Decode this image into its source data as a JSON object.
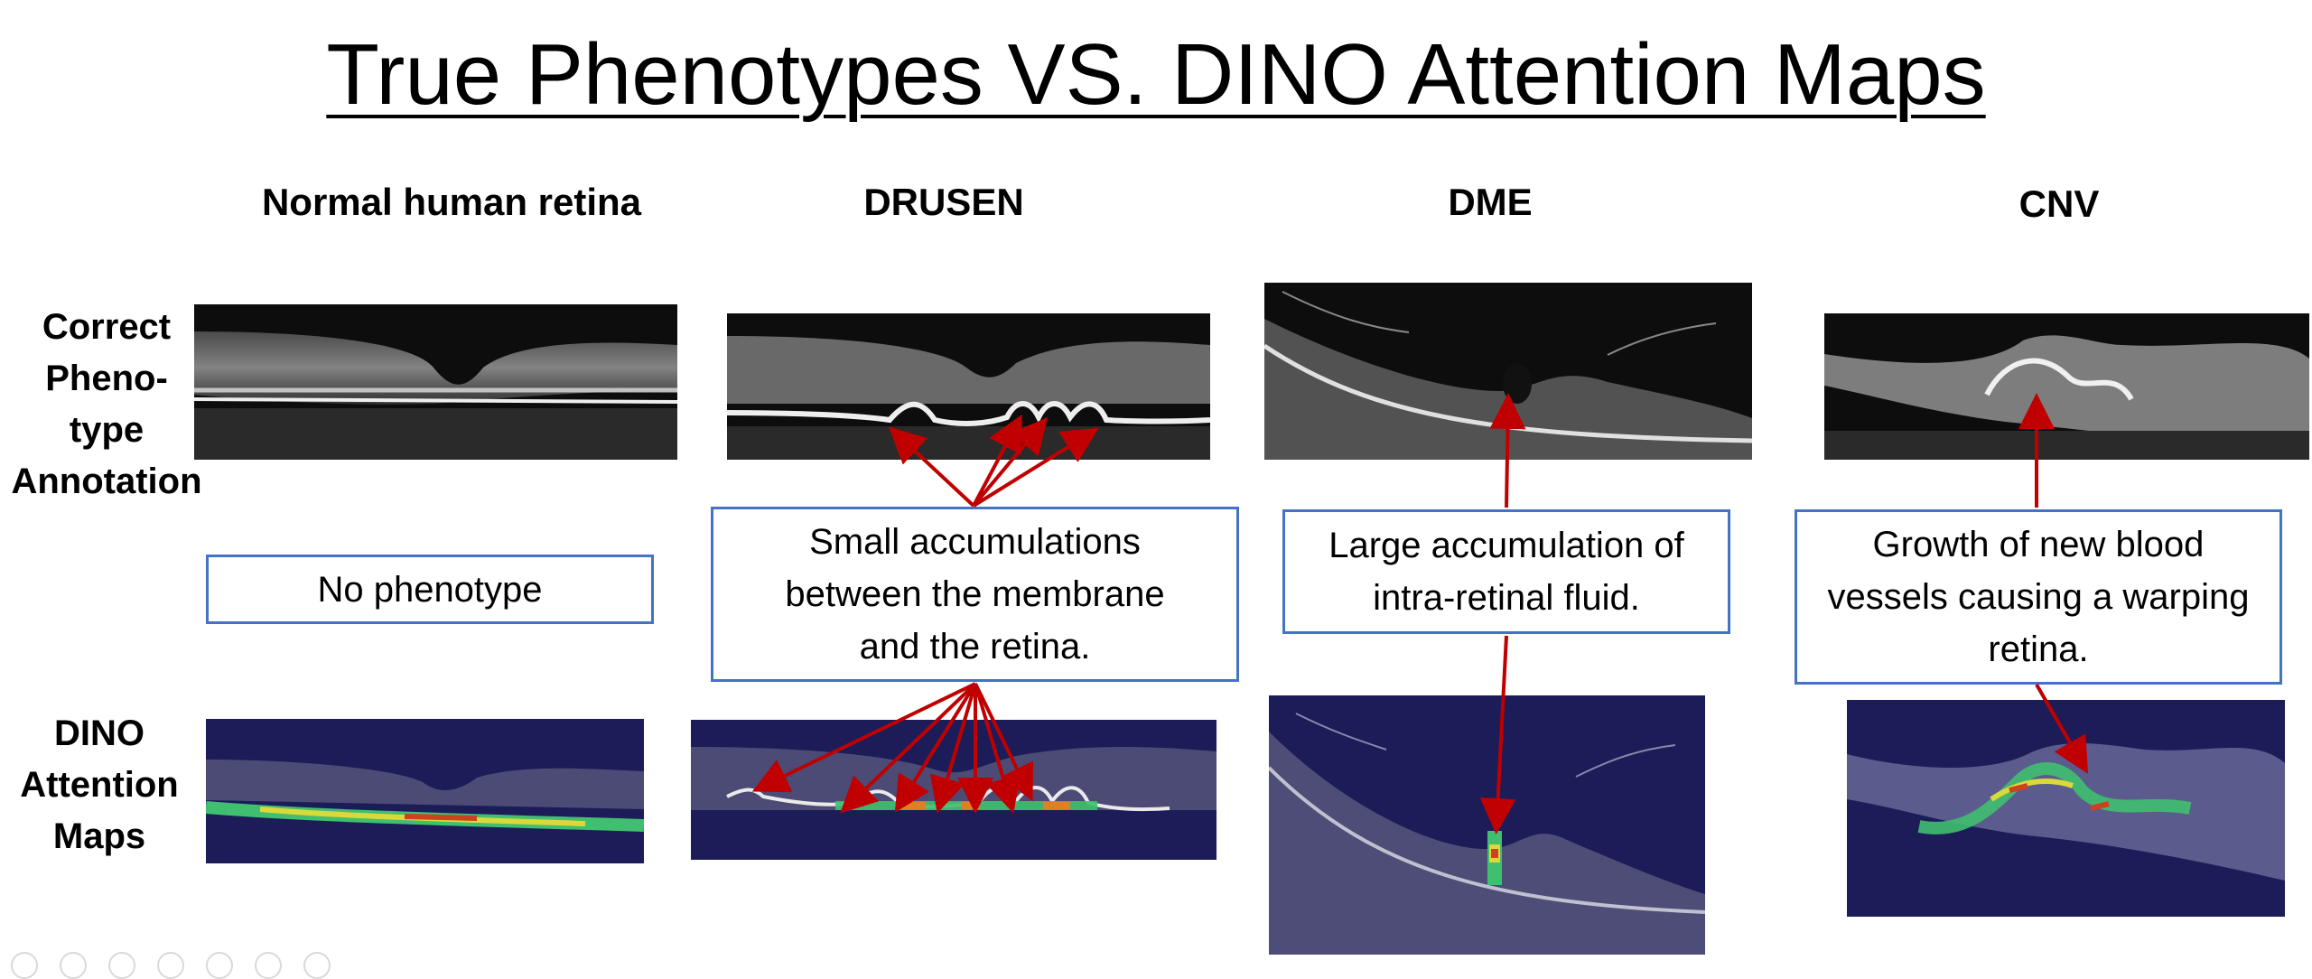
{
  "title": "True Phenotypes VS. DINO Attention Maps",
  "columns": [
    {
      "label": "Normal human retina"
    },
    {
      "label": "DRUSEN"
    },
    {
      "label": "DME"
    },
    {
      "label": "CNV"
    }
  ],
  "rows": {
    "annotation_label": "Correct Pheno-type Annotation",
    "annotation_lines": [
      "Correct",
      "Pheno-",
      "type",
      "Annotation"
    ],
    "dino_lines": [
      "DINO",
      "Attention",
      "Maps"
    ]
  },
  "descriptions": {
    "normal": "No phenotype",
    "drusen": [
      "Small accumulations",
      "between the membrane",
      "and the retina."
    ],
    "dme": [
      "Large accumulation of",
      "intra-retinal fluid."
    ],
    "cnv": [
      "Growth of new blood",
      "vessels causing a warping",
      "retina."
    ]
  },
  "colors": {
    "box_border": "#4472c4",
    "arrow": "#c00000",
    "oct_background": "#0c0c0c",
    "attention_background": "#1c1c58"
  }
}
